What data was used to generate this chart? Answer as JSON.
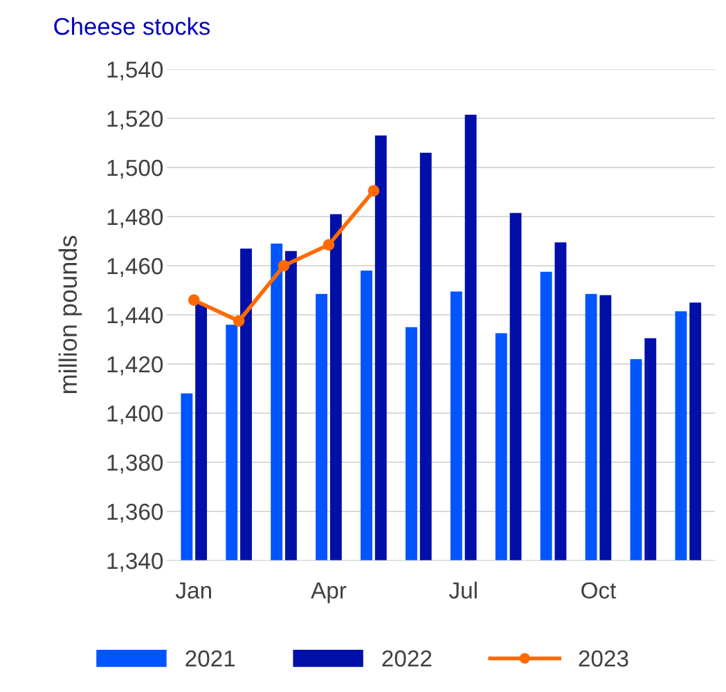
{
  "chart_data": {
    "type": "bar",
    "title": "Cheese stocks",
    "ylabel": "million pounds",
    "categories": [
      "Jan",
      null,
      null,
      "Apr",
      null,
      null,
      "Jul",
      null,
      null,
      "Oct",
      null,
      null
    ],
    "series": [
      {
        "name": "2021",
        "color": "#0055ff",
        "values": [
          1408,
          1436,
          1469,
          1448.5,
          1458,
          1435,
          1449.5,
          1432.5,
          1457.5,
          1448.5,
          1422,
          1441.5
        ]
      },
      {
        "name": "2022",
        "color": "#000fa8",
        "values": [
          1444.5,
          1467,
          1466,
          1481,
          1513,
          1506,
          1521.5,
          1481.5,
          1469.5,
          1448,
          1430.5,
          1445
        ]
      },
      {
        "name": "2023",
        "type": "line",
        "color": "#ff6a00",
        "values": [
          1446,
          1437.5,
          1460,
          1468.5,
          1490.5,
          null,
          null,
          null,
          null,
          null,
          null,
          null
        ]
      }
    ],
    "ylim": [
      1340,
      1540
    ],
    "yticks": [
      {
        "value": 1340,
        "label": "1,340"
      },
      {
        "value": 1360,
        "label": "1,360"
      },
      {
        "value": 1380,
        "label": "1,380"
      },
      {
        "value": 1400,
        "label": "1,400"
      },
      {
        "value": 1420,
        "label": "1,420"
      },
      {
        "value": 1440,
        "label": "1,440"
      },
      {
        "value": 1460,
        "label": "1,460"
      },
      {
        "value": 1480,
        "label": "1,480"
      },
      {
        "value": 1500,
        "label": "1,500"
      },
      {
        "value": 1520,
        "label": "1,520"
      },
      {
        "value": 1540,
        "label": "1,540"
      }
    ],
    "grid": "y",
    "legend": "bottom",
    "marker": "circle"
  }
}
